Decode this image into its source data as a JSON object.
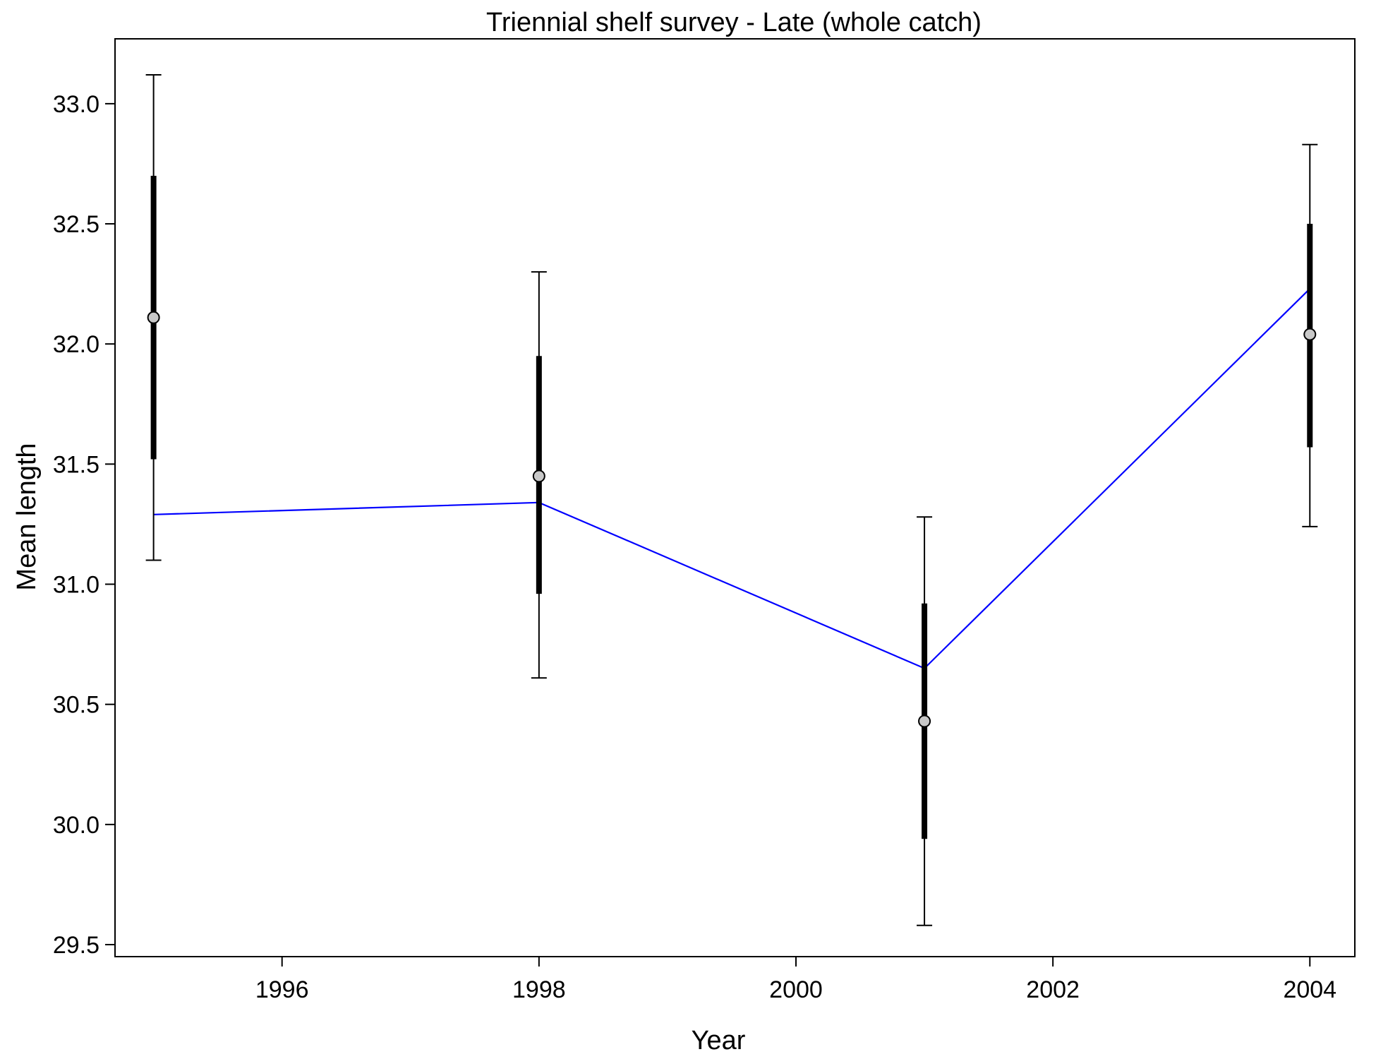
{
  "chart_data": {
    "type": "line",
    "title": "Triennial shelf survey - Late (whole catch)",
    "xlabel": "Year",
    "ylabel": "Mean length",
    "xlim": [
      1994.7,
      2004.35
    ],
    "ylim": [
      29.45,
      33.27
    ],
    "xticks": [
      1996,
      1998,
      2000,
      2002,
      2004
    ],
    "yticks": [
      29.5,
      30.0,
      30.5,
      31.0,
      31.5,
      32.0,
      32.5,
      33.0
    ],
    "ytick_labels": [
      "29.5",
      "30.0",
      "30.5",
      "31.0",
      "31.5",
      "32.0",
      "32.5",
      "33.0"
    ],
    "grid": false,
    "colors": {
      "observed": "#c8c8c8",
      "expected_line": "#0000ff",
      "error_bars": "#000000"
    },
    "observed": [
      {
        "x": 1995,
        "y": 32.11,
        "ci_inner": [
          31.52,
          32.7
        ],
        "ci_outer": [
          31.1,
          33.12
        ]
      },
      {
        "x": 1998,
        "y": 31.45,
        "ci_inner": [
          30.96,
          31.95
        ],
        "ci_outer": [
          30.61,
          32.3
        ]
      },
      {
        "x": 2001,
        "y": 30.43,
        "ci_inner": [
          29.94,
          30.92
        ],
        "ci_outer": [
          29.58,
          31.28
        ]
      },
      {
        "x": 2004,
        "y": 32.04,
        "ci_inner": [
          31.57,
          32.5
        ],
        "ci_outer": [
          31.24,
          32.83
        ]
      }
    ],
    "expected": {
      "x": [
        1995,
        1998,
        2001,
        2004
      ],
      "y": [
        31.29,
        31.34,
        30.65,
        32.23
      ]
    }
  }
}
